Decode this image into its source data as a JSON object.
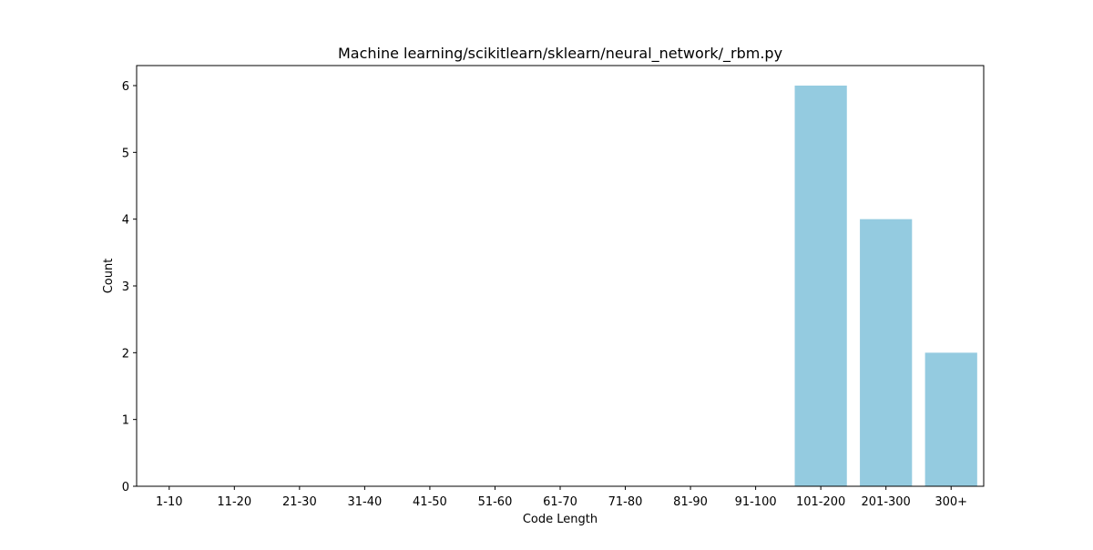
{
  "chart_data": {
    "type": "bar",
    "title": "Machine learning/scikitlearn/sklearn/neural_network/_rbm.py",
    "xlabel": "Code Length",
    "ylabel": "Count",
    "categories": [
      "1-10",
      "11-20",
      "21-30",
      "31-40",
      "41-50",
      "51-60",
      "61-70",
      "71-80",
      "81-90",
      "91-100",
      "101-200",
      "201-300",
      "300+"
    ],
    "values": [
      0,
      0,
      0,
      0,
      0,
      0,
      0,
      0,
      0,
      0,
      6,
      4,
      2
    ],
    "ylim": [
      0,
      6.3
    ],
    "yticks": [
      0,
      1,
      2,
      3,
      4,
      5,
      6
    ],
    "grid": false,
    "legend": "none",
    "colors": {
      "bar": "#94CBE0",
      "axis": "#000000",
      "background": "#ffffff"
    }
  }
}
